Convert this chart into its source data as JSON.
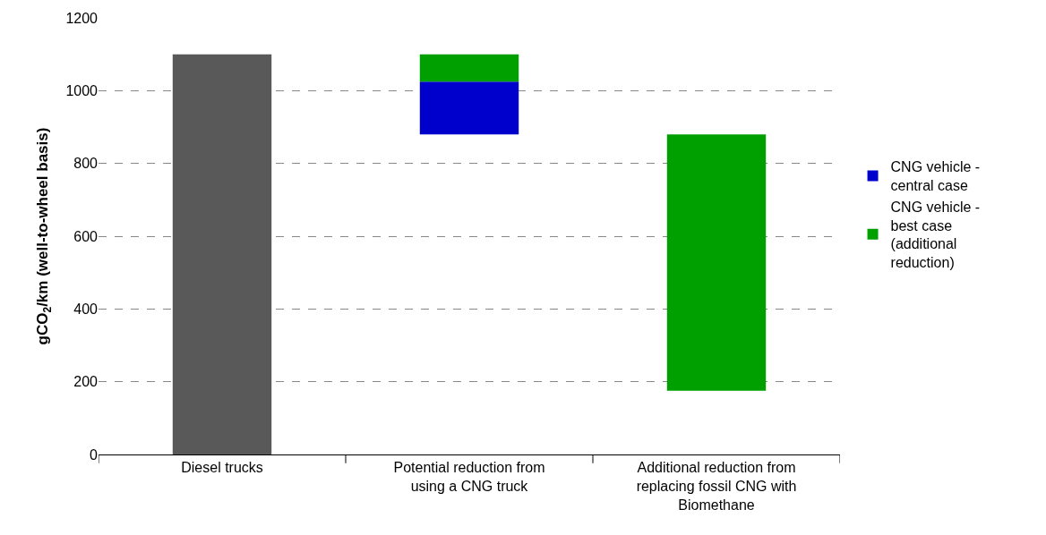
{
  "chart_data": {
    "type": "bar",
    "ylabel": "gCO$_{2}$/km (well-to-wheel basis)",
    "categories": [
      "Diesel trucks",
      "Potential reduction from using a CNG truck",
      "Additional reduction from replacing fossil CNG with Biomethane"
    ],
    "series": [
      {
        "color": "#595959",
        "values": [
          1100,
          null,
          null
        ],
        "base": [
          0,
          null,
          null
        ]
      },
      {
        "name": "CNG vehicle - central case",
        "color": "#0000cc",
        "values": [
          null,
          145,
          null
        ],
        "base": [
          null,
          880,
          null
        ]
      },
      {
        "name": "CNG vehicle - best case (additional reduction)",
        "color": "#00a000",
        "values": [
          null,
          75,
          705
        ],
        "base": [
          null,
          1025,
          175
        ]
      }
    ],
    "ylim": [
      0,
      1200
    ],
    "yticks": [
      0,
      200,
      400,
      600,
      800,
      1000,
      1200
    ],
    "grid": "y",
    "legend": "right"
  }
}
